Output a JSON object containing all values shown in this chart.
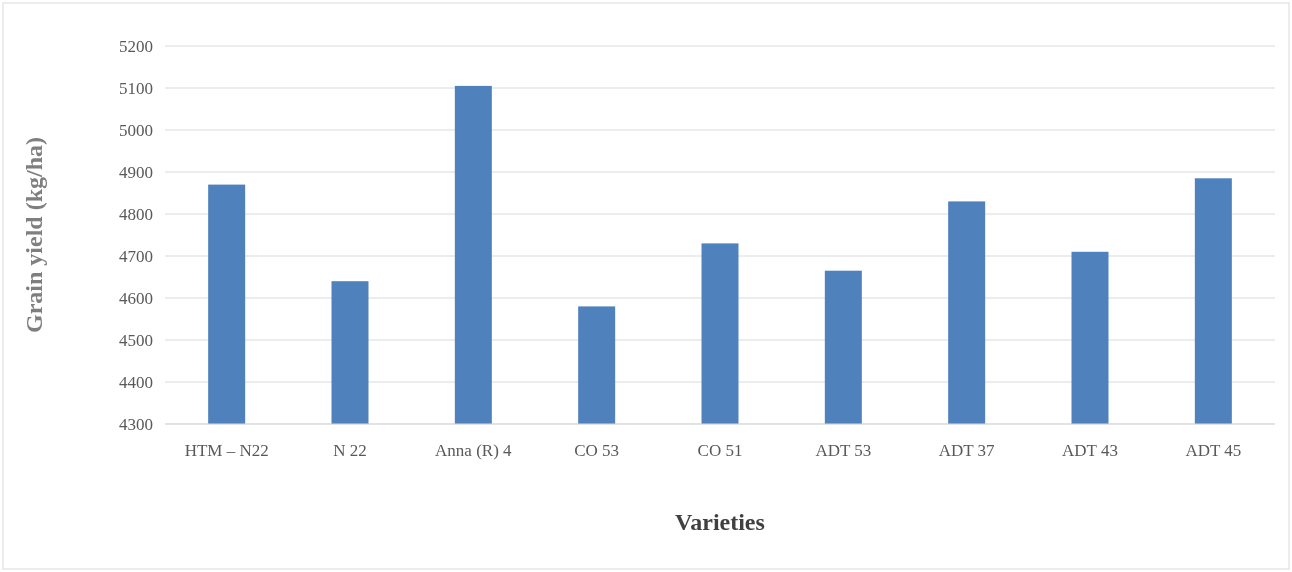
{
  "chart_data": {
    "type": "bar",
    "xlabel": "Varieties",
    "ylabel": "Grain yield (kg/ha)",
    "categories": [
      "HTM – N22",
      "N 22",
      "Anna (R) 4",
      "CO 53",
      "CO 51",
      "ADT 53",
      "ADT 37",
      "ADT 43",
      "ADT 45"
    ],
    "values": [
      4870,
      4640,
      5105,
      4580,
      4730,
      4665,
      4830,
      4710,
      4885
    ],
    "color": "#4f81bd",
    "ylim": [
      4300,
      5200
    ],
    "yticks": [
      4300,
      4400,
      4500,
      4600,
      4700,
      4800,
      4900,
      5000,
      5100,
      5200
    ],
    "grid": "y"
  }
}
